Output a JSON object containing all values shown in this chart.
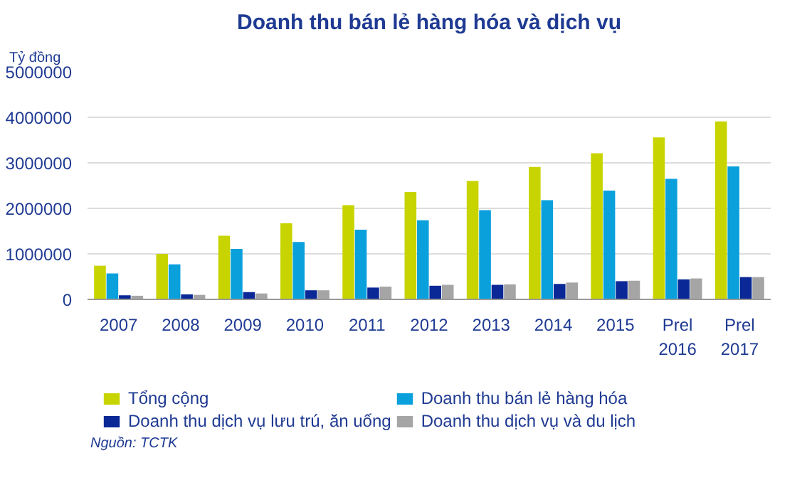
{
  "chart_data": {
    "type": "bar",
    "title": "Doanh thu bán lẻ hàng hóa và dịch vụ",
    "ylabel": "Tỷ đồng",
    "categories": [
      "2007",
      "2008",
      "2009",
      "2010",
      "2011",
      "2012",
      "2013",
      "2014",
      "2015",
      "Prel\n2016",
      "Prel\n2017"
    ],
    "series": [
      {
        "name": "Tổng cộng",
        "color": "#c8d400",
        "values": [
          740000,
          1000000,
          1400000,
          1670000,
          2070000,
          2360000,
          2600000,
          2910000,
          3210000,
          3560000,
          3910000
        ]
      },
      {
        "name": "Doanh thu bán lẻ hàng hóa",
        "color": "#0aa0dc",
        "values": [
          570000,
          770000,
          1110000,
          1260000,
          1530000,
          1740000,
          1960000,
          2180000,
          2390000,
          2650000,
          2920000
        ]
      },
      {
        "name": "Doanh thu dịch vụ lưu trú, ăn uống",
        "color": "#0a2896",
        "values": [
          90000,
          110000,
          160000,
          200000,
          260000,
          300000,
          320000,
          340000,
          400000,
          440000,
          490000
        ]
      },
      {
        "name": "Doanh thu dịch vụ và du lịch",
        "color": "#a5a5a5",
        "values": [
          80000,
          100000,
          130000,
          200000,
          280000,
          320000,
          330000,
          370000,
          410000,
          460000,
          490000
        ]
      }
    ],
    "ylim": [
      0,
      5000000
    ],
    "yticks": [
      0,
      1000000,
      2000000,
      3000000,
      4000000,
      5000000
    ],
    "grid": "y",
    "legend": "bottom",
    "annotations": [
      "Nguồn: TCTK"
    ]
  }
}
